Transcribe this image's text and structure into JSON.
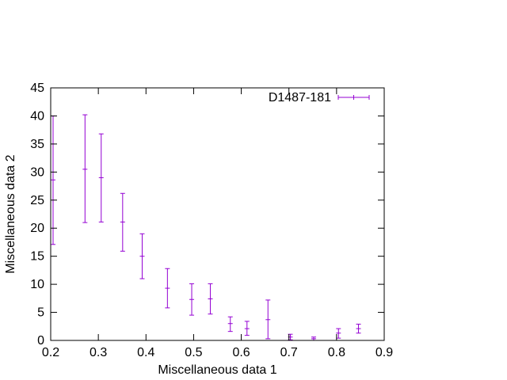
{
  "chart_data": {
    "type": "scatter",
    "title": "",
    "xlabel": "Miscellaneous data 1",
    "ylabel": "Miscellaneous data 2",
    "xlim": [
      0.2,
      0.9
    ],
    "ylim": [
      0,
      45
    ],
    "xticks": [
      0.2,
      0.3,
      0.4,
      0.5,
      0.6,
      0.7,
      0.8,
      0.9
    ],
    "yticks": [
      0,
      5,
      10,
      15,
      20,
      25,
      30,
      35,
      40,
      45
    ],
    "xtick_labels": [
      "0.2",
      "0.3",
      "0.4",
      "0.5",
      "0.6",
      "0.7",
      "0.8",
      "0.9"
    ],
    "ytick_labels": [
      "0",
      "5",
      "10",
      "15",
      "20",
      "25",
      "30",
      "35",
      "40",
      "45"
    ],
    "grid": false,
    "legend_position": "top-right",
    "series": [
      {
        "name": "D1487-181",
        "color": "#9400d3",
        "style": "yerrorbars",
        "points": [
          {
            "x": 0.205,
            "y": 28.6,
            "ylow": 17.1,
            "yhigh": 40.0
          },
          {
            "x": 0.272,
            "y": 30.5,
            "ylow": 21.0,
            "yhigh": 40.2
          },
          {
            "x": 0.306,
            "y": 29.0,
            "ylow": 21.1,
            "yhigh": 36.8
          },
          {
            "x": 0.351,
            "y": 21.1,
            "ylow": 15.9,
            "yhigh": 26.2
          },
          {
            "x": 0.392,
            "y": 15.0,
            "ylow": 11.0,
            "yhigh": 19.0
          },
          {
            "x": 0.445,
            "y": 9.3,
            "ylow": 5.8,
            "yhigh": 12.8
          },
          {
            "x": 0.496,
            "y": 7.3,
            "ylow": 4.5,
            "yhigh": 10.1
          },
          {
            "x": 0.535,
            "y": 7.4,
            "ylow": 4.7,
            "yhigh": 10.1
          },
          {
            "x": 0.577,
            "y": 3.0,
            "ylow": 1.6,
            "yhigh": 4.2
          },
          {
            "x": 0.612,
            "y": 2.1,
            "ylow": 0.9,
            "yhigh": 3.4
          },
          {
            "x": 0.656,
            "y": 3.7,
            "ylow": 0.3,
            "yhigh": 7.2
          },
          {
            "x": 0.703,
            "y": 0.6,
            "ylow": 0.1,
            "yhigh": 1.1
          },
          {
            "x": 0.752,
            "y": 0.3,
            "ylow": 0.0,
            "yhigh": 0.6
          },
          {
            "x": 0.804,
            "y": 1.3,
            "ylow": 0.4,
            "yhigh": 2.1
          },
          {
            "x": 0.846,
            "y": 2.1,
            "ylow": 1.3,
            "yhigh": 2.9
          }
        ]
      }
    ]
  }
}
